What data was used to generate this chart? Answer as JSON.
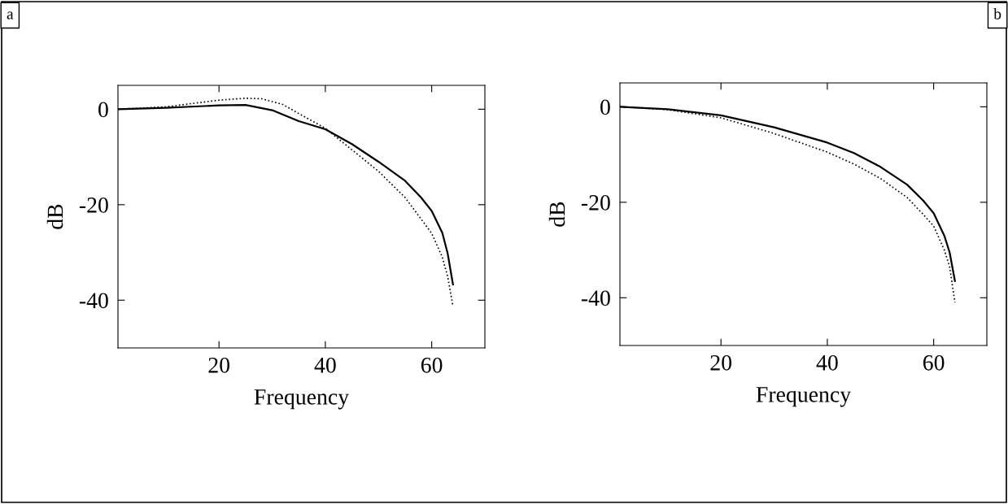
{
  "chart_data": [
    {
      "type": "line",
      "annotations": [
        "a"
      ],
      "ylabel": "dB",
      "xlabel": "Frequency",
      "xlim": [
        1,
        70
      ],
      "ylim": [
        -50,
        5
      ],
      "xticks": [
        20,
        40,
        60
      ],
      "yticks": [
        -40,
        -20,
        0
      ],
      "grid": false,
      "legend": false,
      "series": [
        {
          "color": "#000000",
          "line_style": "solid",
          "x": [
            1,
            10,
            20,
            25,
            30,
            35,
            40,
            45,
            50,
            55,
            58,
            60,
            62,
            63,
            64
          ],
          "values": [
            0,
            0.3,
            0.8,
            0.9,
            -0.2,
            -2.5,
            -4.2,
            -7.3,
            -11,
            -15,
            -18.5,
            -21.3,
            -25.9,
            -30.2,
            -36.7
          ]
        },
        {
          "color": "#000000",
          "line_style": "dotted",
          "x": [
            1,
            10,
            15,
            20,
            25,
            28,
            32,
            35,
            40,
            45,
            50,
            55,
            58,
            60,
            62,
            63,
            64
          ],
          "values": [
            0,
            0.5,
            1.2,
            1.9,
            2.3,
            2.2,
            1.0,
            -0.9,
            -4.0,
            -8.5,
            -13,
            -18.5,
            -23,
            -26,
            -31,
            -35,
            -41.3
          ]
        }
      ]
    },
    {
      "type": "line",
      "annotations": [
        "b"
      ],
      "ylabel": "dB",
      "xlabel": "Frequency",
      "xlim": [
        1,
        70
      ],
      "ylim": [
        -50,
        5
      ],
      "xticks": [
        20,
        40,
        60
      ],
      "yticks": [
        -40,
        -20,
        0
      ],
      "grid": false,
      "legend": false,
      "series": [
        {
          "color": "#000000",
          "line_style": "solid",
          "x": [
            1,
            10,
            20,
            30,
            40,
            45,
            50,
            55,
            58,
            60,
            62,
            63,
            64
          ],
          "values": [
            0,
            -0.5,
            -1.8,
            -4.3,
            -7.5,
            -9.7,
            -12.6,
            -16.3,
            -19.6,
            -22.3,
            -27,
            -30.5,
            -36.5
          ]
        },
        {
          "color": "#000000",
          "line_style": "dotted",
          "x": [
            1,
            10,
            20,
            30,
            40,
            45,
            50,
            55,
            58,
            60,
            62,
            63,
            64
          ],
          "values": [
            0,
            -0.6,
            -2.3,
            -5.6,
            -9.5,
            -12,
            -15,
            -19,
            -22.5,
            -25,
            -30,
            -33.5,
            -41
          ]
        }
      ]
    }
  ]
}
